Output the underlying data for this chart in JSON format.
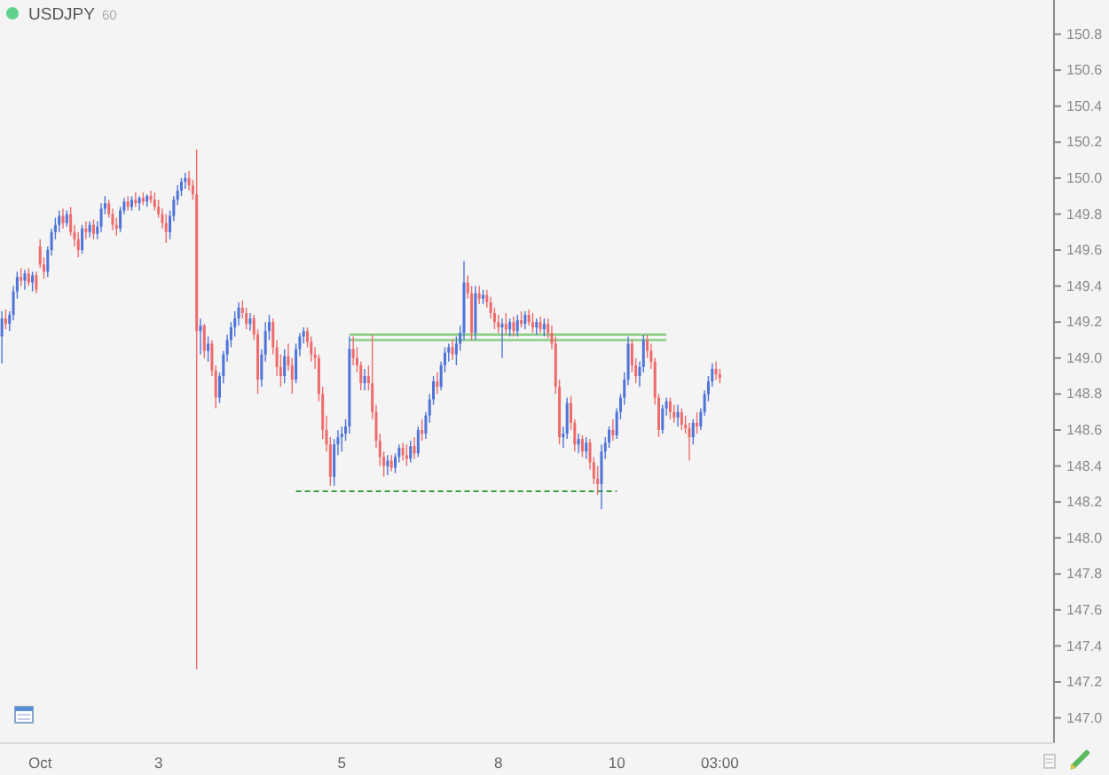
{
  "chart_data": {
    "type": "candlestick",
    "title": "USDJPY",
    "subtitle": "60",
    "categories": [
      null,
      null,
      null,
      null,
      null,
      null,
      null,
      null,
      null,
      null,
      "Oct",
      null,
      null,
      null,
      null,
      null,
      null,
      null,
      null,
      null,
      null,
      null,
      null,
      null,
      null,
      null,
      null,
      null,
      null,
      null,
      null,
      null,
      null,
      null,
      null,
      null,
      null,
      null,
      null,
      null,
      null,
      "3",
      null,
      null,
      null,
      null,
      null,
      null,
      null,
      null,
      null,
      null,
      null,
      null,
      null,
      null,
      null,
      null,
      null,
      null,
      null,
      null,
      null,
      null,
      null,
      null,
      null,
      null,
      null,
      null,
      null,
      null,
      null,
      null,
      null,
      null,
      null,
      null,
      null,
      null,
      null,
      null,
      null,
      null,
      null,
      null,
      null,
      null,
      null,
      "5",
      null,
      null,
      null,
      null,
      null,
      null,
      null,
      null,
      null,
      null,
      null,
      null,
      null,
      null,
      null,
      null,
      null,
      null,
      null,
      null,
      null,
      null,
      null,
      null,
      null,
      null,
      null,
      null,
      null,
      null,
      null,
      null,
      null,
      null,
      null,
      null,
      null,
      null,
      null,
      null,
      "8",
      null,
      null,
      null,
      null,
      null,
      null,
      null,
      null,
      null,
      null,
      null,
      null,
      null,
      null,
      null,
      null,
      null,
      null,
      null,
      null,
      null,
      null,
      null,
      null,
      null,
      null,
      null,
      null,
      null,
      null,
      "10",
      null,
      null,
      null,
      null,
      null,
      null,
      null,
      null,
      null,
      null,
      null,
      null,
      null,
      null,
      null,
      null,
      null,
      null,
      null,
      null,
      null,
      null,
      null,
      null,
      null,
      null,
      "03:00",
      null,
      null,
      null,
      null,
      null,
      null,
      null,
      null,
      null,
      null,
      null,
      null,
      null,
      null,
      null,
      null,
      null,
      null,
      null,
      null,
      null,
      null,
      null,
      null,
      null,
      null,
      null,
      null,
      null,
      null,
      null,
      null,
      null,
      null,
      null,
      null,
      null,
      null,
      null,
      null,
      null,
      null,
      null,
      null,
      null,
      null,
      null,
      null,
      null,
      null,
      null,
      null,
      null,
      null,
      null,
      null,
      null,
      null,
      null,
      null,
      null,
      null,
      null,
      null,
      null,
      null,
      null,
      null,
      null,
      null,
      null,
      null,
      null,
      null,
      null,
      null,
      null,
      null,
      null,
      null,
      null,
      null,
      null,
      null,
      null,
      null,
      null
    ],
    "ohlc": [
      [
        149.12,
        149.26,
        148.97,
        149.22
      ],
      [
        149.22,
        149.27,
        149.16,
        149.19
      ],
      [
        149.19,
        149.26,
        149.15,
        149.24
      ],
      [
        149.24,
        149.4,
        149.21,
        149.37
      ],
      [
        149.37,
        149.48,
        149.33,
        149.45
      ],
      [
        149.45,
        149.5,
        149.4,
        149.43
      ],
      [
        149.43,
        149.49,
        149.38,
        149.47
      ],
      [
        149.47,
        149.5,
        149.4,
        149.42
      ],
      [
        149.42,
        149.48,
        149.37,
        149.46
      ],
      [
        149.46,
        149.48,
        149.36,
        149.38
      ],
      [
        149.62,
        149.66,
        149.5,
        149.52
      ],
      [
        149.52,
        149.56,
        149.44,
        149.48
      ],
      [
        149.48,
        149.62,
        149.45,
        149.6
      ],
      [
        149.6,
        149.72,
        149.57,
        149.7
      ],
      [
        149.7,
        149.78,
        149.66,
        149.74
      ],
      [
        149.74,
        149.82,
        149.7,
        149.79
      ],
      [
        149.79,
        149.83,
        149.72,
        149.75
      ],
      [
        149.75,
        149.82,
        149.73,
        149.8
      ],
      [
        149.8,
        149.84,
        149.68,
        149.7
      ],
      [
        149.7,
        149.74,
        149.62,
        149.66
      ],
      [
        149.66,
        149.7,
        149.56,
        149.6
      ],
      [
        149.6,
        149.74,
        149.58,
        149.72
      ],
      [
        149.72,
        149.76,
        149.66,
        149.7
      ],
      [
        149.7,
        149.76,
        149.67,
        149.74
      ],
      [
        149.74,
        149.77,
        149.66,
        149.69
      ],
      [
        149.69,
        149.76,
        149.66,
        149.73
      ],
      [
        149.73,
        149.86,
        149.7,
        149.83
      ],
      [
        149.83,
        149.9,
        149.8,
        149.86
      ],
      [
        149.86,
        149.88,
        149.78,
        149.8
      ],
      [
        149.8,
        149.83,
        149.71,
        149.74
      ],
      [
        149.74,
        149.78,
        149.68,
        149.72
      ],
      [
        149.72,
        149.84,
        149.7,
        149.82
      ],
      [
        149.82,
        149.89,
        149.8,
        149.87
      ],
      [
        149.87,
        149.9,
        149.82,
        149.84
      ],
      [
        149.84,
        149.9,
        149.82,
        149.88
      ],
      [
        149.88,
        149.92,
        149.84,
        149.86
      ],
      [
        149.86,
        149.9,
        149.82,
        149.89
      ],
      [
        149.89,
        149.92,
        149.85,
        149.87
      ],
      [
        149.87,
        149.91,
        149.84,
        149.9
      ],
      [
        149.9,
        149.93,
        149.86,
        149.88
      ],
      [
        149.88,
        149.92,
        149.82,
        149.84
      ],
      [
        149.84,
        149.88,
        149.78,
        149.8
      ],
      [
        149.8,
        149.83,
        149.72,
        149.75
      ],
      [
        149.75,
        149.8,
        149.64,
        149.7
      ],
      [
        149.7,
        149.82,
        149.66,
        149.79
      ],
      [
        149.79,
        149.9,
        149.76,
        149.88
      ],
      [
        149.88,
        149.96,
        149.85,
        149.93
      ],
      [
        149.93,
        150.0,
        149.9,
        149.98
      ],
      [
        149.98,
        150.03,
        149.94,
        150.0
      ],
      [
        150.0,
        150.04,
        149.93,
        149.96
      ],
      [
        149.96,
        149.99,
        149.88,
        149.91
      ],
      [
        149.91,
        150.16,
        147.27,
        149.15
      ],
      [
        149.15,
        149.22,
        149.02,
        149.18
      ],
      [
        149.18,
        149.19,
        149.0,
        149.04
      ],
      [
        149.04,
        149.12,
        148.98,
        149.08
      ],
      [
        149.08,
        149.1,
        148.9,
        148.93
      ],
      [
        148.93,
        148.96,
        148.72,
        148.78
      ],
      [
        148.78,
        148.92,
        148.75,
        148.9
      ],
      [
        148.9,
        149.04,
        148.86,
        149.02
      ],
      [
        149.02,
        149.13,
        148.98,
        149.1
      ],
      [
        149.1,
        149.2,
        149.06,
        149.17
      ],
      [
        149.17,
        149.26,
        149.12,
        149.22
      ],
      [
        149.22,
        149.31,
        149.18,
        149.28
      ],
      [
        149.28,
        149.32,
        149.22,
        149.25
      ],
      [
        149.25,
        149.28,
        149.16,
        149.19
      ],
      [
        149.19,
        149.25,
        149.15,
        149.22
      ],
      [
        149.22,
        149.24,
        149.1,
        149.13
      ],
      [
        149.13,
        149.16,
        148.8,
        148.88
      ],
      [
        148.88,
        149.05,
        148.84,
        149.02
      ],
      [
        149.02,
        149.2,
        148.98,
        149.15
      ],
      [
        149.15,
        149.24,
        149.1,
        149.2
      ],
      [
        149.2,
        149.22,
        149.02,
        149.06
      ],
      [
        149.06,
        149.1,
        148.9,
        148.95
      ],
      [
        148.95,
        149.02,
        148.84,
        148.9
      ],
      [
        148.9,
        149.05,
        148.86,
        149.01
      ],
      [
        149.01,
        149.08,
        148.93,
        148.96
      ],
      [
        148.96,
        149.0,
        148.8,
        148.88
      ],
      [
        148.88,
        149.08,
        148.86,
        149.05
      ],
      [
        149.05,
        149.14,
        149.01,
        149.12
      ],
      [
        149.12,
        149.17,
        149.08,
        149.15
      ],
      [
        149.15,
        149.17,
        149.06,
        149.09
      ],
      [
        149.09,
        149.12,
        148.98,
        149.02
      ],
      [
        149.02,
        149.06,
        148.94,
        149.0
      ],
      [
        149.0,
        149.02,
        148.76,
        148.8
      ],
      [
        148.8,
        148.84,
        148.55,
        148.6
      ],
      [
        148.6,
        148.68,
        148.48,
        148.52
      ],
      [
        148.52,
        148.56,
        148.29,
        148.34
      ],
      [
        148.34,
        148.55,
        148.29,
        148.52
      ],
      [
        148.52,
        148.6,
        148.46,
        148.56
      ],
      [
        148.56,
        148.62,
        148.48,
        148.58
      ],
      [
        148.58,
        148.66,
        148.54,
        148.62
      ],
      [
        148.62,
        149.12,
        148.58,
        149.05
      ],
      [
        149.05,
        149.12,
        148.96,
        149.0
      ],
      [
        149.0,
        149.06,
        148.92,
        148.96
      ],
      [
        148.96,
        148.98,
        148.82,
        148.86
      ],
      [
        148.86,
        148.94,
        148.82,
        148.9
      ],
      [
        148.9,
        148.96,
        148.82,
        148.86
      ],
      [
        148.86,
        149.13,
        148.66,
        148.7
      ],
      [
        148.7,
        148.74,
        148.5,
        148.54
      ],
      [
        148.54,
        148.58,
        148.4,
        148.45
      ],
      [
        148.45,
        148.48,
        148.34,
        148.4
      ],
      [
        148.4,
        148.46,
        148.35,
        148.43
      ],
      [
        148.43,
        148.46,
        148.37,
        148.39
      ],
      [
        148.39,
        148.47,
        148.36,
        148.45
      ],
      [
        148.45,
        148.52,
        148.42,
        148.5
      ],
      [
        148.5,
        148.53,
        148.43,
        148.46
      ],
      [
        148.46,
        148.52,
        148.4,
        148.44
      ],
      [
        148.44,
        148.54,
        148.42,
        148.51
      ],
      [
        148.51,
        148.56,
        148.44,
        148.47
      ],
      [
        148.47,
        148.62,
        148.45,
        148.6
      ],
      [
        148.6,
        148.66,
        148.54,
        148.58
      ],
      [
        148.58,
        148.7,
        148.55,
        148.68
      ],
      [
        148.68,
        148.8,
        148.64,
        148.77
      ],
      [
        148.77,
        148.9,
        148.74,
        148.87
      ],
      [
        148.87,
        148.92,
        148.8,
        148.84
      ],
      [
        148.84,
        148.98,
        148.82,
        148.96
      ],
      [
        148.96,
        149.06,
        148.92,
        149.03
      ],
      [
        149.03,
        149.08,
        148.98,
        149.06
      ],
      [
        149.06,
        149.1,
        148.99,
        149.02
      ],
      [
        149.02,
        149.12,
        148.96,
        149.08
      ],
      [
        149.08,
        149.18,
        149.04,
        149.14
      ],
      [
        149.14,
        149.54,
        149.1,
        149.42
      ],
      [
        149.42,
        149.46,
        149.33,
        149.36
      ],
      [
        149.36,
        149.4,
        149.1,
        149.14
      ],
      [
        149.14,
        149.4,
        149.1,
        149.36
      ],
      [
        149.36,
        149.4,
        149.3,
        149.33
      ],
      [
        149.33,
        149.38,
        149.3,
        149.35
      ],
      [
        149.35,
        149.38,
        149.28,
        149.31
      ],
      [
        149.31,
        149.34,
        149.22,
        149.25
      ],
      [
        149.25,
        149.28,
        149.16,
        149.2
      ],
      [
        149.2,
        149.24,
        149.14,
        149.17
      ],
      [
        149.17,
        149.22,
        149.0,
        149.19
      ],
      [
        149.19,
        149.25,
        149.13,
        149.16
      ],
      [
        149.16,
        149.22,
        149.12,
        149.2
      ],
      [
        149.2,
        149.23,
        149.12,
        149.15
      ],
      [
        149.15,
        149.24,
        149.12,
        149.21
      ],
      [
        149.21,
        149.26,
        149.17,
        149.19
      ],
      [
        149.19,
        149.26,
        149.16,
        149.24
      ],
      [
        149.24,
        149.27,
        149.18,
        149.2
      ],
      [
        149.2,
        149.25,
        149.14,
        149.17
      ],
      [
        149.17,
        149.22,
        149.13,
        149.2
      ],
      [
        149.2,
        149.23,
        149.14,
        149.16
      ],
      [
        149.16,
        149.22,
        149.12,
        149.19
      ],
      [
        149.19,
        149.22,
        149.11,
        149.14
      ],
      [
        149.14,
        149.18,
        149.05,
        149.08
      ],
      [
        149.08,
        149.12,
        148.8,
        148.84
      ],
      [
        148.84,
        148.88,
        148.52,
        148.56
      ],
      [
        148.56,
        148.62,
        148.5,
        148.58
      ],
      [
        148.58,
        148.78,
        148.55,
        148.75
      ],
      [
        148.75,
        148.79,
        148.6,
        148.64
      ],
      [
        148.64,
        148.66,
        148.48,
        148.52
      ],
      [
        148.52,
        148.58,
        148.47,
        148.55
      ],
      [
        148.55,
        148.57,
        148.45,
        148.48
      ],
      [
        148.48,
        148.56,
        148.44,
        148.53
      ],
      [
        148.53,
        148.55,
        148.38,
        148.42
      ],
      [
        148.42,
        148.45,
        148.3,
        148.33
      ],
      [
        148.33,
        148.4,
        148.24,
        148.3
      ],
      [
        148.3,
        148.52,
        148.16,
        148.48
      ],
      [
        148.48,
        148.56,
        148.44,
        148.53
      ],
      [
        148.53,
        148.62,
        148.5,
        148.6
      ],
      [
        148.6,
        148.66,
        148.54,
        148.57
      ],
      [
        148.57,
        148.72,
        148.55,
        148.7
      ],
      [
        148.7,
        148.8,
        148.66,
        148.78
      ],
      [
        148.78,
        148.92,
        148.74,
        148.88
      ],
      [
        148.88,
        149.12,
        148.85,
        149.08
      ],
      [
        149.08,
        149.1,
        148.92,
        148.96
      ],
      [
        148.96,
        149.0,
        148.86,
        148.9
      ],
      [
        148.9,
        148.98,
        148.84,
        148.95
      ],
      [
        148.95,
        149.13,
        148.92,
        149.1
      ],
      [
        149.1,
        149.13,
        149.0,
        149.04
      ],
      [
        149.04,
        149.08,
        148.94,
        148.98
      ],
      [
        148.98,
        149.0,
        148.74,
        148.78
      ],
      [
        148.78,
        148.8,
        148.56,
        148.6
      ],
      [
        148.6,
        148.74,
        148.58,
        148.72
      ],
      [
        148.72,
        148.78,
        148.68,
        148.76
      ],
      [
        148.76,
        148.78,
        148.66,
        148.7
      ],
      [
        148.7,
        148.74,
        148.64,
        148.67
      ],
      [
        148.67,
        148.74,
        148.62,
        148.7
      ],
      [
        148.7,
        148.72,
        148.6,
        148.63
      ],
      [
        148.63,
        148.68,
        148.58,
        148.61
      ],
      [
        148.61,
        148.64,
        148.43,
        148.56
      ],
      [
        148.56,
        148.66,
        148.52,
        148.64
      ],
      [
        148.64,
        148.7,
        148.58,
        148.62
      ],
      [
        148.62,
        148.72,
        148.6,
        148.7
      ],
      [
        148.7,
        148.82,
        148.68,
        148.8
      ],
      [
        148.8,
        148.9,
        148.76,
        148.87
      ],
      [
        148.87,
        148.97,
        148.84,
        148.94
      ],
      [
        148.94,
        148.98,
        148.88,
        148.91
      ],
      [
        148.91,
        148.94,
        148.86,
        148.89
      ],
      null,
      null,
      null,
      null,
      null,
      null,
      null,
      null,
      null,
      null,
      null,
      null,
      null,
      null,
      null,
      null,
      null,
      null,
      null,
      null,
      null,
      null,
      null,
      null,
      null,
      null,
      null,
      null,
      null,
      null,
      null,
      null,
      null,
      null,
      null,
      null,
      null,
      null,
      null,
      null,
      null,
      null,
      null,
      null,
      null,
      null,
      null,
      null,
      null,
      null,
      null,
      null,
      null,
      null,
      null,
      null,
      null,
      null,
      null,
      null,
      null,
      null,
      null,
      null,
      null,
      null,
      null,
      null,
      null,
      null,
      null,
      null,
      null,
      null,
      null,
      null,
      null,
      null,
      null,
      null,
      null,
      null,
      null,
      null,
      null,
      null,
      null
    ],
    "colors": [
      "#4f74d9",
      "#ef6b6b",
      "#4f74d9",
      "#4f74d9",
      "#4f74d9",
      "#ef6b6b",
      "#4f74d9",
      "#ef6b6b",
      "#4f74d9",
      "#ef6b6b",
      "#ef6b6b",
      "#ef6b6b",
      "#4f74d9",
      "#4f74d9",
      "#4f74d9",
      "#4f74d9",
      "#ef6b6b",
      "#4f74d9",
      "#ef6b6b",
      "#ef6b6b",
      "#ef6b6b",
      "#4f74d9",
      "#ef6b6b",
      "#4f74d9",
      "#ef6b6b",
      "#4f74d9",
      "#4f74d9",
      "#4f74d9",
      "#ef6b6b",
      "#ef6b6b",
      "#ef6b6b",
      "#4f74d9",
      "#4f74d9",
      "#ef6b6b",
      "#4f74d9",
      "#ef6b6b",
      "#4f74d9",
      "#ef6b6b",
      "#4f74d9",
      "#ef6b6b",
      "#ef6b6b",
      "#ef6b6b",
      "#ef6b6b",
      "#ef6b6b",
      "#4f74d9",
      "#4f74d9",
      "#4f74d9",
      "#4f74d9",
      "#4f74d9",
      "#ef6b6b",
      "#ef6b6b",
      "#ef6b6b",
      "#4f74d9",
      "#ef6b6b",
      "#4f74d9",
      "#ef6b6b",
      "#ef6b6b",
      "#4f74d9",
      "#4f74d9",
      "#4f74d9",
      "#4f74d9",
      "#4f74d9",
      "#4f74d9",
      "#ef6b6b",
      "#ef6b6b",
      "#4f74d9",
      "#ef6b6b",
      "#ef6b6b",
      "#4f74d9",
      "#4f74d9",
      "#4f74d9",
      "#ef6b6b",
      "#ef6b6b",
      "#ef6b6b",
      "#4f74d9",
      "#ef6b6b",
      "#ef6b6b",
      "#4f74d9",
      "#4f74d9",
      "#4f74d9",
      "#ef6b6b",
      "#ef6b6b",
      "#ef6b6b",
      "#ef6b6b",
      "#ef6b6b",
      "#ef6b6b",
      "#ef6b6b",
      "#4f74d9",
      "#4f74d9",
      "#4f74d9",
      "#4f74d9",
      "#4f74d9",
      "#ef6b6b",
      "#ef6b6b",
      "#ef6b6b",
      "#4f74d9",
      "#ef6b6b",
      "#ef6b6b",
      "#ef6b6b",
      "#ef6b6b",
      "#ef6b6b",
      "#4f74d9",
      "#ef6b6b",
      "#4f74d9",
      "#4f74d9",
      "#ef6b6b",
      "#ef6b6b",
      "#4f74d9",
      "#ef6b6b",
      "#4f74d9",
      "#ef6b6b",
      "#4f74d9",
      "#4f74d9",
      "#4f74d9",
      "#ef6b6b",
      "#4f74d9",
      "#4f74d9",
      "#4f74d9",
      "#ef6b6b",
      "#4f74d9",
      "#4f74d9",
      "#4f74d9",
      "#ef6b6b",
      "#ef6b6b",
      "#4f74d9",
      "#ef6b6b",
      "#4f74d9",
      "#ef6b6b",
      "#ef6b6b",
      "#ef6b6b",
      "#ef6b6b",
      "#4f74d9",
      "#ef6b6b",
      "#4f74d9",
      "#ef6b6b",
      "#4f74d9",
      "#ef6b6b",
      "#4f74d9",
      "#ef6b6b",
      "#ef6b6b",
      "#4f74d9",
      "#ef6b6b",
      "#4f74d9",
      "#ef6b6b",
      "#ef6b6b",
      "#ef6b6b",
      "#ef6b6b",
      "#4f74d9",
      "#4f74d9",
      "#ef6b6b",
      "#ef6b6b",
      "#4f74d9",
      "#ef6b6b",
      "#4f74d9",
      "#ef6b6b",
      "#ef6b6b",
      "#ef6b6b",
      "#4f74d9",
      "#4f74d9",
      "#4f74d9",
      "#ef6b6b",
      "#4f74d9",
      "#4f74d9",
      "#4f74d9",
      "#4f74d9",
      "#ef6b6b",
      "#ef6b6b",
      "#4f74d9",
      "#4f74d9",
      "#ef6b6b",
      "#ef6b6b",
      "#ef6b6b",
      "#ef6b6b",
      "#4f74d9",
      "#4f74d9",
      "#ef6b6b",
      "#ef6b6b",
      "#4f74d9",
      "#ef6b6b",
      "#ef6b6b",
      "#ef6b6b",
      "#4f74d9",
      "#ef6b6b",
      "#4f74d9",
      "#4f74d9",
      "#4f74d9",
      "#4f74d9",
      "#ef6b6b",
      "#ef6b6b",
      null,
      null,
      null,
      null,
      null,
      null,
      null,
      null,
      null,
      null,
      null,
      null,
      null,
      null,
      null,
      null,
      null,
      null,
      null,
      null,
      null,
      null,
      null,
      null,
      null,
      null,
      null,
      null,
      null,
      null,
      null,
      null,
      null,
      null,
      null,
      null,
      null,
      null,
      null,
      null,
      null,
      null,
      null,
      null,
      null,
      null,
      null,
      null,
      null,
      null,
      null,
      null,
      null,
      null,
      null,
      null,
      null,
      null,
      null,
      null,
      null,
      null,
      null,
      null,
      null,
      null,
      null,
      null,
      null,
      null,
      null,
      null,
      null,
      null,
      null,
      null,
      null,
      null,
      null,
      null,
      null,
      null,
      null,
      null,
      null,
      null,
      null
    ],
    "series": [
      {
        "type": "line",
        "color": "#3f9e45",
        "line_style": "dashed",
        "values": [
          null,
          null,
          null,
          null,
          null,
          null,
          null,
          null,
          null,
          null,
          null,
          null,
          null,
          null,
          null,
          null,
          null,
          null,
          null,
          null,
          null,
          null,
          null,
          null,
          null,
          null,
          null,
          null,
          null,
          null,
          null,
          null,
          null,
          null,
          null,
          null,
          null,
          null,
          null,
          null,
          null,
          null,
          null,
          null,
          null,
          null,
          null,
          null,
          null,
          null,
          null,
          null,
          null,
          null,
          null,
          null,
          null,
          null,
          null,
          null,
          null,
          null,
          null,
          null,
          null,
          null,
          null,
          null,
          null,
          null,
          null,
          null,
          null,
          null,
          null,
          null,
          null,
          148.26,
          148.26,
          148.26,
          148.26,
          148.26,
          148.26,
          148.26,
          148.26,
          148.26,
          148.26,
          148.26,
          148.26,
          148.26,
          148.26,
          148.26,
          148.26,
          148.26,
          148.26,
          148.26,
          148.26,
          148.26,
          148.26,
          148.26,
          148.26,
          148.26,
          148.26,
          148.26,
          148.26,
          148.26,
          148.26,
          148.26,
          148.26,
          148.26,
          148.26,
          148.26,
          148.26,
          148.26,
          148.26,
          148.26,
          148.26,
          148.26,
          148.26,
          148.26,
          148.26,
          148.26,
          148.26,
          148.26,
          148.26,
          148.26,
          148.26,
          148.26,
          148.26,
          148.26,
          148.26,
          148.26,
          148.26,
          148.26,
          148.26,
          148.26,
          148.26,
          148.26,
          148.26,
          148.26,
          148.26,
          148.26,
          148.26,
          148.26,
          148.26,
          148.26,
          148.26,
          148.26,
          148.26,
          148.26,
          148.26,
          148.26,
          148.26,
          148.26,
          148.26,
          148.26,
          148.26,
          148.26,
          148.26,
          148.26,
          148.26,
          148.26,
          null,
          null,
          null,
          null,
          null,
          null,
          null,
          null,
          null,
          null,
          null,
          null,
          null,
          null,
          null,
          null,
          null,
          null,
          null,
          null,
          null,
          null,
          null,
          null,
          null,
          null,
          null,
          null,
          null,
          null,
          null,
          null,
          null,
          null,
          null,
          null,
          null,
          null,
          null,
          null,
          null,
          null,
          null,
          null,
          null,
          null,
          null,
          null,
          null,
          null,
          null,
          null,
          null,
          null,
          null,
          null,
          null,
          null,
          null,
          null,
          null,
          null,
          null,
          null,
          null,
          null,
          null,
          null,
          null,
          null,
          null,
          null,
          null,
          null,
          null,
          null,
          null,
          null,
          null,
          null,
          null,
          null,
          null,
          null,
          null,
          null,
          null,
          null,
          null,
          null,
          null,
          null,
          null,
          null,
          null,
          null,
          null,
          null,
          null,
          null,
          null,
          null,
          null,
          null,
          null,
          null,
          null,
          null,
          null,
          null,
          null,
          null,
          null,
          null
        ]
      },
      {
        "type": "line",
        "color": "#8ccf87",
        "line_style": "solid",
        "values": [
          null,
          null,
          null,
          null,
          null,
          null,
          null,
          null,
          null,
          null,
          null,
          null,
          null,
          null,
          null,
          null,
          null,
          null,
          null,
          null,
          null,
          null,
          null,
          null,
          null,
          null,
          null,
          null,
          null,
          null,
          null,
          null,
          null,
          null,
          null,
          null,
          null,
          null,
          null,
          null,
          null,
          null,
          null,
          null,
          null,
          null,
          null,
          null,
          null,
          null,
          null,
          null,
          null,
          null,
          null,
          null,
          null,
          null,
          null,
          null,
          null,
          null,
          null,
          null,
          null,
          null,
          null,
          null,
          null,
          null,
          null,
          null,
          null,
          null,
          null,
          null,
          null,
          null,
          null,
          null,
          null,
          null,
          null,
          null,
          null,
          null,
          null,
          null,
          null,
          null,
          null,
          149.13,
          149.13,
          149.13,
          149.13,
          149.13,
          149.13,
          149.13,
          149.13,
          149.13,
          149.13,
          149.13,
          149.13,
          149.13,
          149.13,
          149.13,
          149.13,
          149.13,
          149.13,
          149.13,
          149.13,
          149.13,
          149.13,
          149.13,
          149.13,
          149.13,
          149.13,
          149.13,
          149.13,
          149.13,
          149.13,
          149.13,
          149.13,
          149.13,
          149.13,
          149.13,
          149.13,
          149.13,
          149.13,
          149.13,
          149.13,
          149.13,
          149.13,
          149.13,
          149.13,
          149.13,
          149.13,
          149.13,
          149.13,
          149.13,
          149.13,
          149.13,
          149.13,
          149.13,
          149.13,
          149.13,
          149.13,
          149.13,
          149.13,
          149.13,
          149.13,
          149.13,
          149.13,
          149.13,
          149.13,
          149.13,
          149.13,
          149.13,
          149.13,
          149.13,
          149.13,
          149.13,
          149.13,
          149.13,
          149.13,
          149.13,
          149.13,
          149.13,
          149.13,
          149.13,
          149.13,
          149.13,
          149.13,
          149.13,
          149.13,
          null,
          null,
          null,
          null,
          null,
          null,
          null,
          null,
          null,
          null,
          null,
          null,
          null,
          null,
          null,
          null,
          null,
          null,
          null,
          null,
          null,
          null,
          null,
          null,
          null,
          null,
          null,
          null,
          null,
          null,
          null,
          null,
          null,
          null,
          null,
          null,
          null,
          null,
          null,
          null,
          null,
          null,
          null,
          null,
          null,
          null,
          null,
          null,
          null,
          null,
          null,
          null,
          null,
          null,
          null,
          null,
          null,
          null,
          null,
          null,
          null,
          null,
          null,
          null,
          null,
          null,
          null,
          null,
          null,
          null,
          null,
          null,
          null,
          null,
          null,
          null,
          null,
          null,
          null,
          null,
          null,
          null,
          null,
          null,
          null,
          null,
          null,
          null,
          null,
          null,
          null,
          null,
          null,
          null,
          null,
          null,
          null,
          null,
          null,
          null,
          null
        ]
      },
      {
        "type": "line",
        "color": "#8ccf87",
        "line_style": "solid",
        "values": [
          null,
          null,
          null,
          null,
          null,
          null,
          null,
          null,
          null,
          null,
          null,
          null,
          null,
          null,
          null,
          null,
          null,
          null,
          null,
          null,
          null,
          null,
          null,
          null,
          null,
          null,
          null,
          null,
          null,
          null,
          null,
          null,
          null,
          null,
          null,
          null,
          null,
          null,
          null,
          null,
          null,
          null,
          null,
          null,
          null,
          null,
          null,
          null,
          null,
          null,
          null,
          null,
          null,
          null,
          null,
          null,
          null,
          null,
          null,
          null,
          null,
          null,
          null,
          null,
          null,
          null,
          null,
          null,
          null,
          null,
          null,
          null,
          null,
          null,
          null,
          null,
          null,
          null,
          null,
          null,
          null,
          null,
          null,
          null,
          null,
          null,
          null,
          null,
          null,
          null,
          null,
          149.1,
          149.1,
          149.1,
          149.1,
          149.1,
          149.1,
          149.1,
          149.1,
          149.1,
          149.1,
          149.1,
          149.1,
          149.1,
          149.1,
          149.1,
          149.1,
          149.1,
          149.1,
          149.1,
          149.1,
          149.1,
          149.1,
          149.1,
          149.1,
          149.1,
          149.1,
          149.1,
          149.1,
          149.1,
          149.1,
          149.1,
          149.1,
          149.1,
          149.1,
          149.1,
          149.1,
          149.1,
          149.1,
          149.1,
          149.1,
          149.1,
          149.1,
          149.1,
          149.1,
          149.1,
          149.1,
          149.1,
          149.1,
          149.1,
          149.1,
          149.1,
          149.1,
          149.1,
          149.1,
          149.1,
          149.1,
          149.1,
          149.1,
          149.1,
          149.1,
          149.1,
          149.1,
          149.1,
          149.1,
          149.1,
          149.1,
          149.1,
          149.1,
          149.1,
          149.1,
          149.1,
          149.1,
          149.1,
          149.1,
          149.1,
          149.1,
          149.1,
          149.1,
          149.1,
          149.1,
          149.1,
          149.1,
          149.1,
          149.1,
          null,
          null,
          null,
          null,
          null,
          null,
          null,
          null,
          null,
          null,
          null,
          null,
          null,
          null,
          null,
          null,
          null,
          null,
          null,
          null,
          null,
          null,
          null,
          null,
          null,
          null,
          null,
          null,
          null,
          null,
          null,
          null,
          null,
          null,
          null,
          null,
          null,
          null,
          null,
          null,
          null,
          null,
          null,
          null,
          null,
          null,
          null,
          null,
          null,
          null,
          null,
          null,
          null,
          null,
          null,
          null,
          null,
          null,
          null,
          null,
          null,
          null,
          null,
          null,
          null,
          null,
          null,
          null,
          null,
          null,
          null,
          null,
          null,
          null,
          null,
          null,
          null,
          null,
          null,
          null,
          null,
          null,
          null,
          null,
          null,
          null,
          null,
          null,
          null,
          null,
          null,
          null,
          null,
          null,
          null,
          null,
          null,
          null,
          null,
          null,
          null
        ]
      }
    ],
    "ylim": [
      146.86,
      150.99
    ],
    "yticks": [
      {
        "value": 147,
        "label": "147.0"
      },
      147.2,
      147.4,
      147.6,
      147.8,
      {
        "value": 148,
        "label": "148.0"
      },
      148.2,
      148.4,
      148.6,
      148.8,
      {
        "value": 149,
        "label": "149.0"
      },
      149.2,
      149.4,
      149.6,
      149.8,
      {
        "value": 150,
        "label": "150.0"
      },
      150.2,
      150.4,
      150.6,
      150.8
    ]
  }
}
